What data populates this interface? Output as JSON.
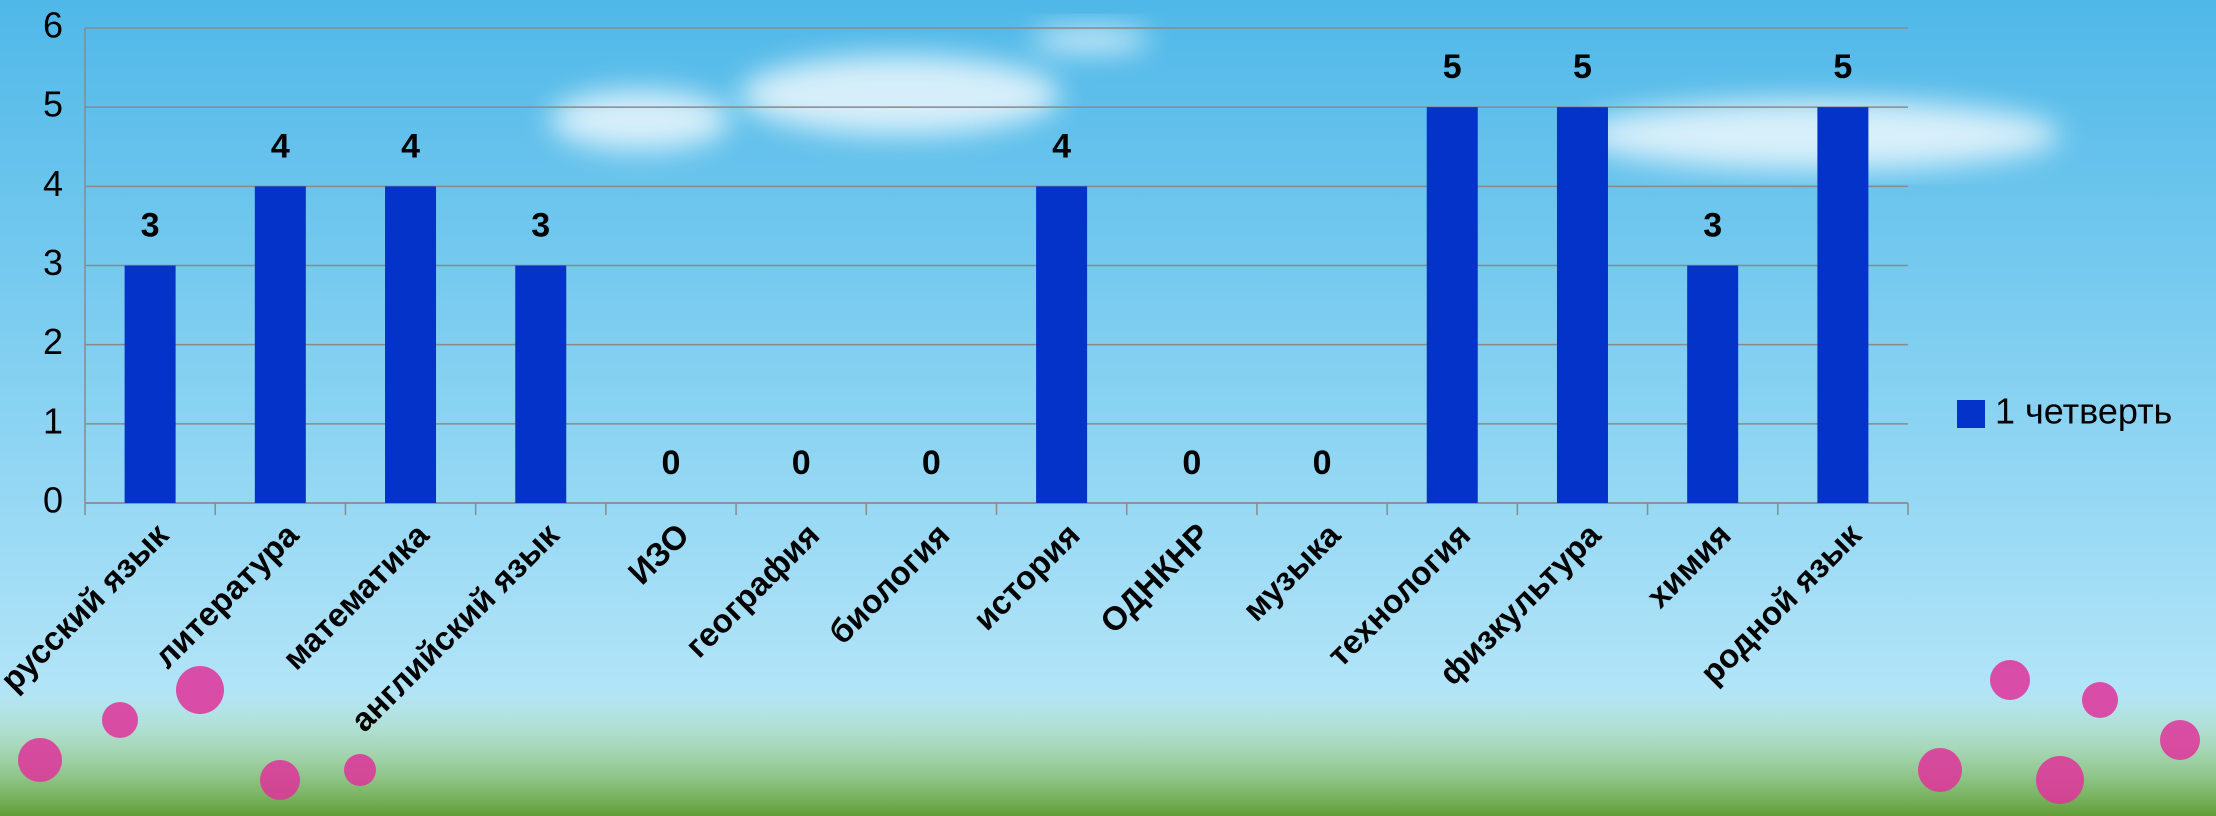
{
  "chart_data": {
    "type": "bar",
    "categories": [
      "русский язык",
      "литература",
      "математика",
      "английский язык",
      "ИЗО",
      "география",
      "биология",
      "история",
      "ОДНКНР",
      "музыка",
      "технология",
      "физкультура",
      "химия",
      "родной язык"
    ],
    "series": [
      {
        "name": "1 четверть",
        "color": "#0433c9",
        "values": [
          3,
          4,
          4,
          3,
          0,
          0,
          0,
          4,
          0,
          0,
          5,
          5,
          3,
          5
        ]
      }
    ],
    "ylim": [
      0,
      6
    ],
    "yticks": [
      0,
      1,
      2,
      3,
      4,
      5,
      6
    ],
    "grid": true,
    "legend": "right"
  }
}
